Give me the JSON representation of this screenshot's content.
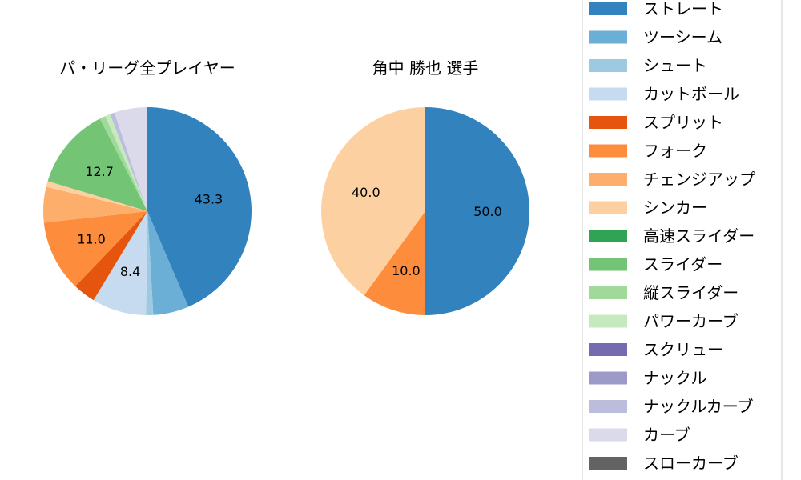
{
  "chart_data": [
    {
      "type": "pie",
      "title": "パ・リーグ全プレイヤー",
      "slices": [
        {
          "label": "ストレート",
          "value": 43.3,
          "color": "#3182bd",
          "value_label": "43.3"
        },
        {
          "label": "ツーシーム",
          "value": 5.5,
          "color": "#6baed6",
          "value_label": ""
        },
        {
          "label": "シュート",
          "value": 1.1,
          "color": "#9ecae1",
          "value_label": ""
        },
        {
          "label": "カットボール",
          "value": 8.4,
          "color": "#c6dbef",
          "value_label": "8.4"
        },
        {
          "label": "スプリット",
          "value": 3.5,
          "color": "#e6550d",
          "value_label": ""
        },
        {
          "label": "フォーク",
          "value": 11.0,
          "color": "#fd8d3c",
          "value_label": "11.0"
        },
        {
          "label": "チェンジアップ",
          "value": 5.5,
          "color": "#fdae6b",
          "value_label": ""
        },
        {
          "label": "シンカー",
          "value": 0.9,
          "color": "#fdd0a2",
          "value_label": ""
        },
        {
          "label": "高速スライダー",
          "value": 0.0,
          "color": "#31a354",
          "value_label": ""
        },
        {
          "label": "スライダー",
          "value": 12.7,
          "color": "#74c476",
          "value_label": "12.7"
        },
        {
          "label": "縦スライダー",
          "value": 0.9,
          "color": "#a1d99b",
          "value_label": ""
        },
        {
          "label": "パワーカーブ",
          "value": 0.8,
          "color": "#c7e9c0",
          "value_label": ""
        },
        {
          "label": "スクリュー",
          "value": 0.0,
          "color": "#756bb1",
          "value_label": ""
        },
        {
          "label": "ナックル",
          "value": 0.0,
          "color": "#9e9ac8",
          "value_label": ""
        },
        {
          "label": "ナックルカーブ",
          "value": 0.7,
          "color": "#bcbddc",
          "value_label": ""
        },
        {
          "label": "カーブ",
          "value": 5.1,
          "color": "#dadaeb",
          "value_label": ""
        },
        {
          "label": "スローカーブ",
          "value": 0.0,
          "color": "#636363",
          "value_label": ""
        }
      ]
    },
    {
      "type": "pie",
      "title": "角中 勝也  選手",
      "slices": [
        {
          "label": "ストレート",
          "value": 50.0,
          "color": "#3182bd",
          "value_label": "50.0"
        },
        {
          "label": "フォーク",
          "value": 10.0,
          "color": "#fd8d3c",
          "value_label": "10.0"
        },
        {
          "label": "シンカー",
          "value": 40.0,
          "color": "#fdd0a2",
          "value_label": "40.0"
        }
      ]
    }
  ],
  "legend": {
    "placement": "right",
    "items": [
      {
        "label": "ストレート",
        "color": "#3182bd"
      },
      {
        "label": "ツーシーム",
        "color": "#6baed6"
      },
      {
        "label": "シュート",
        "color": "#9ecae1"
      },
      {
        "label": "カットボール",
        "color": "#c6dbef"
      },
      {
        "label": "スプリット",
        "color": "#e6550d"
      },
      {
        "label": "フォーク",
        "color": "#fd8d3c"
      },
      {
        "label": "チェンジアップ",
        "color": "#fdae6b"
      },
      {
        "label": "シンカー",
        "color": "#fdd0a2"
      },
      {
        "label": "高速スライダー",
        "color": "#31a354"
      },
      {
        "label": "スライダー",
        "color": "#74c476"
      },
      {
        "label": "縦スライダー",
        "color": "#a1d99b"
      },
      {
        "label": "パワーカーブ",
        "color": "#c7e9c0"
      },
      {
        "label": "スクリュー",
        "color": "#756bb1"
      },
      {
        "label": "ナックル",
        "color": "#9e9ac8"
      },
      {
        "label": "ナックルカーブ",
        "color": "#bcbddc"
      },
      {
        "label": "カーブ",
        "color": "#dadaeb"
      },
      {
        "label": "スローカーブ",
        "color": "#636363"
      }
    ]
  }
}
